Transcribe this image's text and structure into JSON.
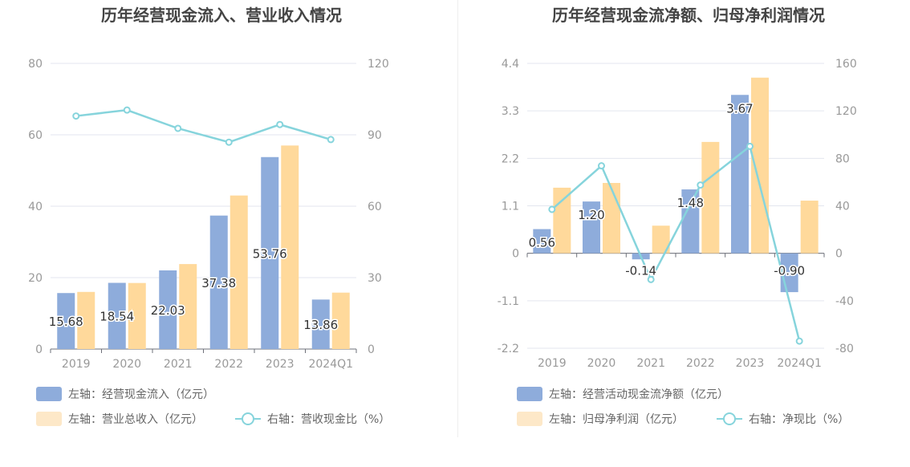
{
  "colors": {
    "bar_primary": "#8eacdb",
    "bar_secondary": "#ffd99b",
    "line": "#86d4dc",
    "axis_text": "#999999",
    "grid": "#e3e6ef",
    "title": "#444444",
    "legend_text": "#666666",
    "label_text": "#333333"
  },
  "chart_data": [
    {
      "type": "bar",
      "title": "历年经营现金流入、营业收入情况",
      "categories": [
        "2019",
        "2020",
        "2021",
        "2022",
        "2023",
        "2024Q1"
      ],
      "left_axis": {
        "ticks": [
          "0",
          "20",
          "40",
          "60",
          "80"
        ],
        "ylim": [
          0,
          80
        ]
      },
      "right_axis": {
        "ticks": [
          "0",
          "30",
          "60",
          "90",
          "120"
        ],
        "ylim": [
          0,
          120
        ]
      },
      "series": [
        {
          "name": "左轴：经营现金流入（亿元）",
          "kind": "bar",
          "axis": "left",
          "color": "#8eacdb",
          "values": [
            15.68,
            18.54,
            22.03,
            37.38,
            53.76,
            13.86
          ],
          "labels": [
            "15.68",
            "18.54",
            "22.03",
            "37.38",
            "53.76",
            "13.86"
          ]
        },
        {
          "name": "左轴：营业总收入（亿元）",
          "kind": "bar",
          "axis": "left",
          "color": "#ffd99b",
          "values": [
            16.0,
            18.5,
            23.8,
            43.0,
            57.0,
            15.8
          ]
        },
        {
          "name": "右轴：营收现金比（%）",
          "kind": "line",
          "axis": "right",
          "color": "#86d4dc",
          "values": [
            97.9,
            100.4,
            92.7,
            86.9,
            94.3,
            88.0
          ]
        }
      ],
      "grid": true,
      "legend_position": "bottom-left"
    },
    {
      "type": "bar",
      "title": "历年经营现金流净额、归母净利润情况",
      "categories": [
        "2019",
        "2020",
        "2021",
        "2022",
        "2023",
        "2024Q1"
      ],
      "left_axis": {
        "ticks": [
          "-2.2",
          "-1.1",
          "0",
          "1.1",
          "2.2",
          "3.3",
          "4.4"
        ],
        "ylim": [
          -2.2,
          4.4
        ]
      },
      "right_axis": {
        "ticks": [
          "-80",
          "-40",
          "0",
          "40",
          "80",
          "120",
          "160"
        ],
        "ylim": [
          -80,
          160
        ]
      },
      "series": [
        {
          "name": "左轴：经营活动现金流净额（亿元）",
          "kind": "bar",
          "axis": "left",
          "color": "#8eacdb",
          "values": [
            0.56,
            1.2,
            -0.14,
            1.48,
            3.67,
            -0.9
          ],
          "labels": [
            "0.56",
            "1.20",
            "-0.14",
            "1.48",
            "3.67",
            "-0.90"
          ]
        },
        {
          "name": "左轴：归母净利润（亿元）",
          "kind": "bar",
          "axis": "left",
          "color": "#ffd99b",
          "values": [
            1.52,
            1.63,
            0.64,
            2.58,
            4.07,
            1.22
          ]
        },
        {
          "name": "右轴：净现比（%）",
          "kind": "line",
          "axis": "right",
          "color": "#86d4dc",
          "values": [
            37.0,
            73.7,
            -22.1,
            57.5,
            90.1,
            -74.0
          ]
        }
      ],
      "grid": true,
      "legend_position": "bottom-left"
    }
  ]
}
